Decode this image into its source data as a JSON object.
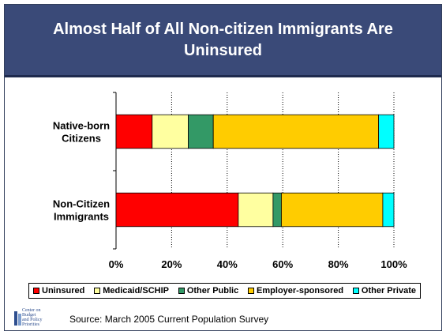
{
  "slide": {
    "title": "Almost Half of All Non-citizen Immigrants Are Uninsured",
    "source": "Source: March 2005 Current Population Survey",
    "logo_text": "Center on\nBudget\nand Policy\nPriorities"
  },
  "chart_data": {
    "type": "bar",
    "orientation": "horizontal",
    "stacked": true,
    "categories": [
      "Native-born Citizens",
      "Non-Citizen Immigrants"
    ],
    "category_lines": [
      [
        "Native-born",
        "Citizens"
      ],
      [
        "Non-Citizen",
        "Immigrants"
      ]
    ],
    "series": [
      {
        "name": "Uninsured",
        "color": "#ff0000",
        "values": [
          13,
          44
        ]
      },
      {
        "name": "Medicaid/SCHIP",
        "color": "#ffffa0",
        "values": [
          13,
          12.5
        ]
      },
      {
        "name": "Other Public",
        "color": "#339966",
        "values": [
          9,
          3
        ]
      },
      {
        "name": "Employer-sponsored",
        "color": "#ffcc00",
        "values": [
          59.5,
          36.5
        ]
      },
      {
        "name": "Other Private",
        "color": "#00ffff",
        "values": [
          5.5,
          4
        ]
      }
    ],
    "xlim": [
      0,
      100
    ],
    "x_ticks": [
      "0%",
      "20%",
      "40%",
      "60%",
      "80%",
      "100%"
    ],
    "grid": "vertical dotted",
    "legend_position": "bottom"
  }
}
